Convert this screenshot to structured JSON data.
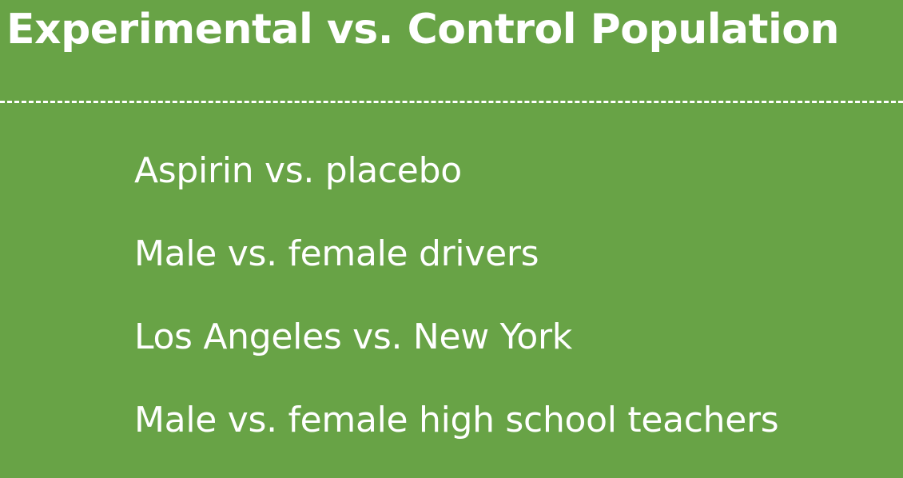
{
  "slide": {
    "title": "Experimental vs. Control Population",
    "items": [
      "Aspirin vs. placebo",
      "Male vs. female drivers",
      "Los Angeles vs. New York",
      "Male vs. female high school teachers"
    ]
  },
  "colors": {
    "background": "#68a346",
    "text": "#ffffff"
  }
}
